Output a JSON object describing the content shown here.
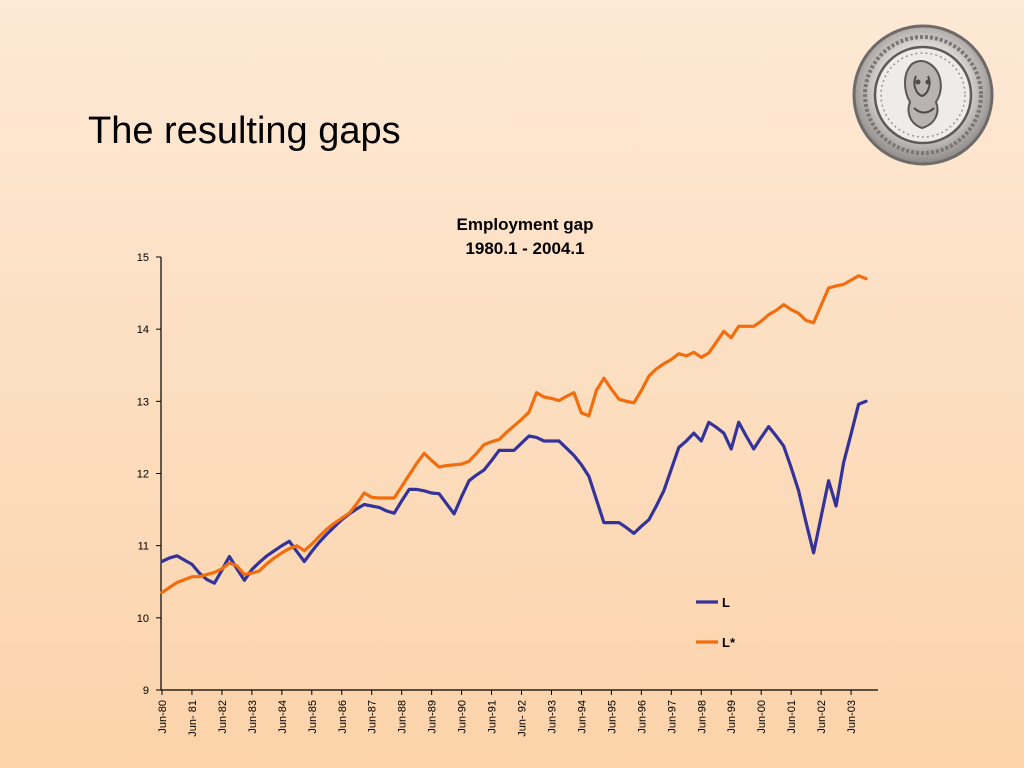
{
  "slide": {
    "title": "The resulting gaps"
  },
  "logo": {
    "icon": "central-bank-seal-icon"
  },
  "chart_data": {
    "type": "line",
    "title": "Employment gap",
    "subtitle": "1980.1 - 2004.1",
    "xlabel": "",
    "ylabel": "",
    "ylim": [
      9,
      15
    ],
    "yticks": [
      9,
      10,
      11,
      12,
      13,
      14,
      15
    ],
    "x_tick_labels": [
      "Jun-80",
      "Jun- 81",
      "Jun-82",
      "Jun-83",
      "Jun-84",
      "Jun-85",
      "Jun-86",
      "Jun-87",
      "Jun-88",
      "Jun-89",
      "Jun-90",
      "Jun-91",
      "Jun- 92",
      "Jun-93",
      "Jun-94",
      "Jun-95",
      "Jun-96",
      "Jun-97",
      "Jun-98",
      "Jun-99",
      "Jun-00",
      "Jun-01",
      "Jun-02",
      "Jun-03"
    ],
    "x_start": 1980.5,
    "x_step": 0.25,
    "legend_position": "bottom-right",
    "grid": false,
    "series": [
      {
        "name": "L",
        "color": "#333399",
        "values": [
          10.78,
          10.83,
          10.86,
          10.8,
          10.74,
          10.62,
          10.53,
          10.48,
          10.66,
          10.85,
          10.68,
          10.52,
          10.67,
          10.77,
          10.86,
          10.93,
          11.0,
          11.06,
          10.92,
          10.78,
          10.92,
          11.05,
          11.16,
          11.26,
          11.36,
          11.44,
          11.51,
          11.57,
          11.55,
          11.53,
          11.48,
          11.45,
          11.62,
          11.78,
          11.78,
          11.76,
          11.73,
          11.72,
          11.58,
          11.44,
          11.68,
          11.9,
          11.98,
          12.05,
          12.18,
          12.32,
          12.32,
          12.32,
          12.42,
          12.52,
          12.5,
          12.45,
          12.45,
          12.45,
          12.35,
          12.25,
          12.12,
          11.96,
          11.64,
          11.32,
          11.32,
          11.32,
          11.25,
          11.17,
          11.27,
          11.36,
          11.55,
          11.76,
          12.06,
          12.36,
          12.45,
          12.56,
          12.45,
          12.71,
          12.64,
          12.56,
          12.34,
          12.71,
          12.52,
          12.34,
          12.5,
          12.65,
          12.52,
          12.38,
          12.08,
          11.76,
          11.32,
          10.9,
          11.4,
          11.9,
          11.55,
          12.15,
          12.55,
          12.96,
          13.0
        ]
      },
      {
        "name": "L*",
        "color": "#f26d0e",
        "values": [
          10.35,
          10.42,
          10.49,
          10.53,
          10.57,
          10.57,
          10.6,
          10.63,
          10.68,
          10.76,
          10.72,
          10.6,
          10.62,
          10.65,
          10.75,
          10.83,
          10.9,
          10.96,
          11.0,
          10.93,
          11.02,
          11.13,
          11.23,
          11.31,
          11.38,
          11.45,
          11.58,
          11.73,
          11.67,
          11.66,
          11.66,
          11.66,
          11.82,
          11.98,
          12.14,
          12.28,
          12.18,
          12.09,
          12.11,
          12.12,
          12.13,
          12.17,
          12.28,
          12.4,
          12.44,
          12.47,
          12.57,
          12.66,
          12.75,
          12.85,
          13.12,
          13.06,
          13.04,
          13.01,
          13.07,
          13.12,
          12.84,
          12.8,
          13.15,
          13.32,
          13.17,
          13.03,
          13.0,
          12.98,
          13.15,
          13.35,
          13.45,
          13.52,
          13.58,
          13.66,
          13.63,
          13.68,
          13.61,
          13.67,
          13.82,
          13.97,
          13.88,
          14.04,
          14.04,
          14.04,
          14.11,
          14.2,
          14.26,
          14.34,
          14.27,
          14.22,
          14.12,
          14.09,
          14.33,
          14.57,
          14.6,
          14.62,
          14.68,
          14.74,
          14.7
        ]
      }
    ]
  }
}
